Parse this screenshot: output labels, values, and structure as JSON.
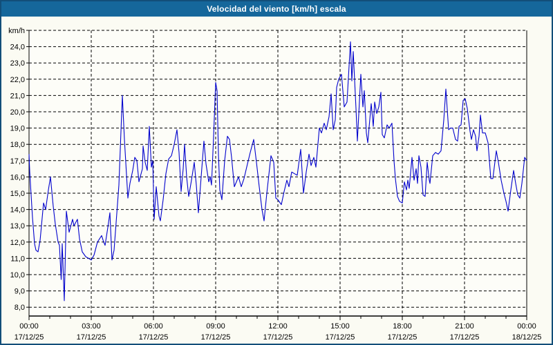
{
  "window": {
    "title": "Velocidad del viento [km/h] escala"
  },
  "colors": {
    "titlebar": "#15679B",
    "border": "#124E79",
    "background": "#FBFBF3",
    "plot_background": "#FDFDF8",
    "line": "#0000CC",
    "grid": "#000000",
    "text": "#000000",
    "title_text": "#FFFFFF"
  },
  "chart_data": {
    "type": "line",
    "title": "Velocidad del viento [km/h] escala",
    "ylabel": "km/h",
    "xlabel": "",
    "ylim": [
      8,
      25
    ],
    "ytick_step": 1,
    "grid": "dashed",
    "legend": "none",
    "yticks": [
      {
        "v": 24,
        "label": "24,0"
      },
      {
        "v": 23,
        "label": "23,0"
      },
      {
        "v": 22,
        "label": "22,0"
      },
      {
        "v": 21,
        "label": "21,0"
      },
      {
        "v": 20,
        "label": "20,0"
      },
      {
        "v": 19,
        "label": "19,0"
      },
      {
        "v": 18,
        "label": "18,0"
      },
      {
        "v": 17,
        "label": "17,0"
      },
      {
        "v": 16,
        "label": "16,0"
      },
      {
        "v": 15,
        "label": "15,0"
      },
      {
        "v": 14,
        "label": "14,0"
      },
      {
        "v": 13,
        "label": "13,0"
      },
      {
        "v": 12,
        "label": "12,0"
      },
      {
        "v": 11,
        "label": "11,0"
      },
      {
        "v": 10,
        "label": "10,0"
      },
      {
        "v": 9,
        "label": "9,0"
      },
      {
        "v": 8,
        "label": "8,0"
      }
    ],
    "xticks": [
      {
        "m": 0,
        "time": "00:00",
        "date": "17/12/25"
      },
      {
        "m": 180,
        "time": "03:00",
        "date": "17/12/25"
      },
      {
        "m": 360,
        "time": "06:00",
        "date": "17/12/25"
      },
      {
        "m": 540,
        "time": "09:00",
        "date": "17/12/25"
      },
      {
        "m": 720,
        "time": "12:00",
        "date": "17/12/25"
      },
      {
        "m": 900,
        "time": "15:00",
        "date": "17/12/25"
      },
      {
        "m": 1080,
        "time": "18:00",
        "date": "17/12/25"
      },
      {
        "m": 1260,
        "time": "21:00",
        "date": "17/12/25"
      },
      {
        "m": 1440,
        "time": "00:00",
        "date": "18/12/25"
      }
    ],
    "x_span_minutes": 1440,
    "minor_xtick_minutes": 60,
    "series": [
      {
        "name": "Velocidad del viento",
        "color": "#0000CC",
        "points": [
          [
            0,
            17.4
          ],
          [
            2,
            16.3
          ],
          [
            6,
            14.9
          ],
          [
            10,
            13.5
          ],
          [
            16,
            11.9
          ],
          [
            20,
            11.5
          ],
          [
            26,
            11.4
          ],
          [
            32,
            12.1
          ],
          [
            42,
            14.4
          ],
          [
            48,
            14.0
          ],
          [
            56,
            15.2
          ],
          [
            62,
            16.0
          ],
          [
            70,
            14.2
          ],
          [
            76,
            13.1
          ],
          [
            84,
            12.0
          ],
          [
            88,
            11.8
          ],
          [
            93,
            9.7
          ],
          [
            96,
            11.9
          ],
          [
            102,
            8.4
          ],
          [
            108,
            13.9
          ],
          [
            116,
            12.6
          ],
          [
            126,
            13.4
          ],
          [
            130,
            13.0
          ],
          [
            140,
            13.4
          ],
          [
            146,
            12.2
          ],
          [
            154,
            11.4
          ],
          [
            164,
            11.1
          ],
          [
            172,
            11.0
          ],
          [
            180,
            10.9
          ],
          [
            188,
            11.2
          ],
          [
            198,
            12.0
          ],
          [
            210,
            12.4
          ],
          [
            216,
            12.0
          ],
          [
            220,
            11.8
          ],
          [
            228,
            12.9
          ],
          [
            234,
            13.8
          ],
          [
            240,
            10.9
          ],
          [
            246,
            11.5
          ],
          [
            252,
            13.2
          ],
          [
            260,
            15.5
          ],
          [
            270,
            21.0
          ],
          [
            276,
            18.3
          ],
          [
            286,
            14.7
          ],
          [
            292,
            15.6
          ],
          [
            300,
            16.4
          ],
          [
            306,
            17.2
          ],
          [
            312,
            17.0
          ],
          [
            318,
            15.7
          ],
          [
            328,
            16.5
          ],
          [
            330,
            17.9
          ],
          [
            336,
            16.9
          ],
          [
            342,
            16.4
          ],
          [
            348,
            19.1
          ],
          [
            354,
            16.6
          ],
          [
            358,
            17.0
          ],
          [
            362,
            13.4
          ],
          [
            368,
            15.4
          ],
          [
            376,
            13.6
          ],
          [
            380,
            13.3
          ],
          [
            388,
            14.6
          ],
          [
            396,
            16.2
          ],
          [
            404,
            17.1
          ],
          [
            412,
            17.3
          ],
          [
            420,
            18.0
          ],
          [
            428,
            18.9
          ],
          [
            434,
            17.5
          ],
          [
            440,
            15.1
          ],
          [
            446,
            16.5
          ],
          [
            450,
            18.0
          ],
          [
            456,
            16.0
          ],
          [
            462,
            14.8
          ],
          [
            470,
            15.8
          ],
          [
            478,
            16.9
          ],
          [
            484,
            15.5
          ],
          [
            490,
            13.8
          ],
          [
            498,
            16.0
          ],
          [
            506,
            18.2
          ],
          [
            512,
            16.8
          ],
          [
            520,
            15.7
          ],
          [
            524,
            16.0
          ],
          [
            528,
            15.5
          ],
          [
            534,
            18.5
          ],
          [
            540,
            21.8
          ],
          [
            544,
            21.3
          ],
          [
            548,
            17.4
          ],
          [
            552,
            15.2
          ],
          [
            558,
            14.6
          ],
          [
            566,
            17.0
          ],
          [
            574,
            18.5
          ],
          [
            580,
            18.3
          ],
          [
            586,
            17.2
          ],
          [
            594,
            15.4
          ],
          [
            600,
            15.7
          ],
          [
            606,
            16.0
          ],
          [
            614,
            15.4
          ],
          [
            622,
            15.9
          ],
          [
            632,
            16.8
          ],
          [
            640,
            17.5
          ],
          [
            650,
            18.3
          ],
          [
            658,
            16.9
          ],
          [
            666,
            15.4
          ],
          [
            674,
            14.0
          ],
          [
            680,
            13.3
          ],
          [
            688,
            15.0
          ],
          [
            700,
            17.3
          ],
          [
            708,
            16.9
          ],
          [
            714,
            14.7
          ],
          [
            720,
            14.6
          ],
          [
            730,
            14.3
          ],
          [
            738,
            15.1
          ],
          [
            746,
            15.8
          ],
          [
            752,
            15.4
          ],
          [
            760,
            16.3
          ],
          [
            768,
            16.2
          ],
          [
            776,
            16.1
          ],
          [
            786,
            17.7
          ],
          [
            794,
            15.0
          ],
          [
            802,
            16.3
          ],
          [
            810,
            17.4
          ],
          [
            816,
            16.7
          ],
          [
            824,
            17.2
          ],
          [
            830,
            16.6
          ],
          [
            840,
            19.0
          ],
          [
            846,
            18.7
          ],
          [
            854,
            19.3
          ],
          [
            860,
            18.9
          ],
          [
            868,
            19.7
          ],
          [
            874,
            21.1
          ],
          [
            880,
            18.9
          ],
          [
            886,
            19.5
          ],
          [
            890,
            21.5
          ],
          [
            896,
            22.0
          ],
          [
            904,
            22.3
          ],
          [
            912,
            20.3
          ],
          [
            920,
            20.6
          ],
          [
            930,
            24.3
          ],
          [
            934,
            21.9
          ],
          [
            938,
            23.7
          ],
          [
            946,
            20.2
          ],
          [
            950,
            18.2
          ],
          [
            960,
            22.3
          ],
          [
            966,
            20.3
          ],
          [
            970,
            21.3
          ],
          [
            976,
            18.7
          ],
          [
            980,
            18.1
          ],
          [
            990,
            20.5
          ],
          [
            996,
            19.1
          ],
          [
            1000,
            20.6
          ],
          [
            1006,
            19.9
          ],
          [
            1012,
            20.3
          ],
          [
            1018,
            21.2
          ],
          [
            1022,
            18.6
          ],
          [
            1028,
            18.4
          ],
          [
            1036,
            19.2
          ],
          [
            1042,
            19.0
          ],
          [
            1050,
            19.3
          ],
          [
            1056,
            17.0
          ],
          [
            1060,
            15.9
          ],
          [
            1066,
            14.8
          ],
          [
            1072,
            14.5
          ],
          [
            1080,
            14.4
          ],
          [
            1086,
            15.7
          ],
          [
            1092,
            15.2
          ],
          [
            1096,
            15.8
          ],
          [
            1100,
            15.3
          ],
          [
            1108,
            17.2
          ],
          [
            1114,
            15.8
          ],
          [
            1120,
            16.5
          ],
          [
            1124,
            15.6
          ],
          [
            1128,
            17.3
          ],
          [
            1134,
            16.6
          ],
          [
            1140,
            14.9
          ],
          [
            1146,
            14.8
          ],
          [
            1152,
            16.9
          ],
          [
            1158,
            15.8
          ],
          [
            1160,
            15.6
          ],
          [
            1168,
            17.3
          ],
          [
            1176,
            17.5
          ],
          [
            1184,
            17.4
          ],
          [
            1192,
            17.6
          ],
          [
            1200,
            19.5
          ],
          [
            1206,
            21.4
          ],
          [
            1214,
            18.9
          ],
          [
            1220,
            19.0
          ],
          [
            1226,
            19.0
          ],
          [
            1234,
            18.3
          ],
          [
            1240,
            18.2
          ],
          [
            1244,
            19.1
          ],
          [
            1250,
            19.2
          ],
          [
            1256,
            20.7
          ],
          [
            1262,
            20.8
          ],
          [
            1268,
            20.2
          ],
          [
            1276,
            18.8
          ],
          [
            1280,
            18.3
          ],
          [
            1286,
            18.9
          ],
          [
            1292,
            18.5
          ],
          [
            1296,
            17.6
          ],
          [
            1302,
            18.5
          ],
          [
            1306,
            19.8
          ],
          [
            1312,
            18.7
          ],
          [
            1320,
            18.7
          ],
          [
            1328,
            18.1
          ],
          [
            1336,
            15.9
          ],
          [
            1342,
            15.9
          ],
          [
            1352,
            17.6
          ],
          [
            1358,
            16.9
          ],
          [
            1366,
            15.8
          ],
          [
            1374,
            15.0
          ],
          [
            1380,
            14.5
          ],
          [
            1386,
            13.9
          ],
          [
            1394,
            15.2
          ],
          [
            1402,
            16.4
          ],
          [
            1408,
            15.6
          ],
          [
            1414,
            14.9
          ],
          [
            1420,
            14.7
          ],
          [
            1426,
            15.6
          ],
          [
            1434,
            17.2
          ],
          [
            1440,
            17.0
          ]
        ]
      }
    ]
  }
}
